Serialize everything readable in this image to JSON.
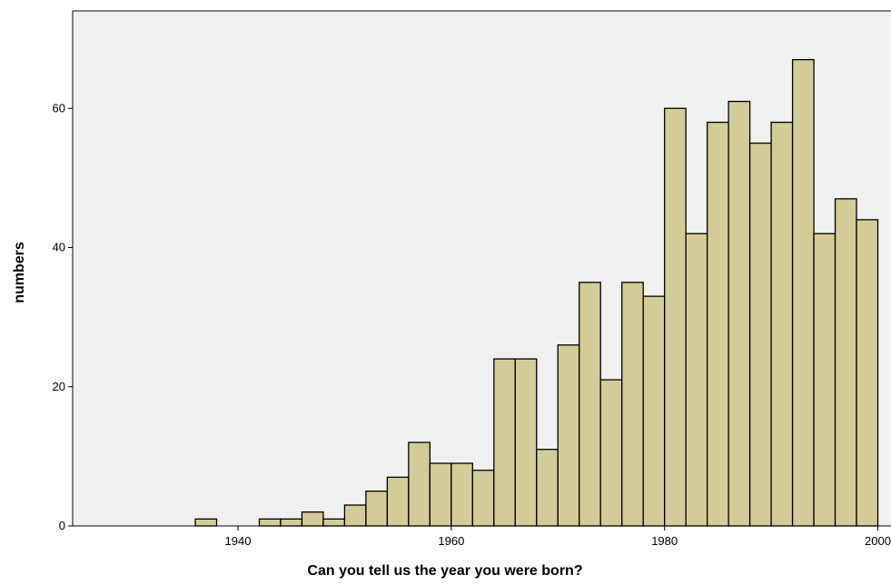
{
  "chart_data": {
    "type": "bar",
    "subtype": "histogram",
    "title": "",
    "xlabel": "Can you tell us the year you were born?",
    "ylabel": "numbers",
    "xlim": [
      1924.5,
      2002
    ],
    "ylim": [
      0,
      74
    ],
    "bin_width": 2,
    "xticks": [
      1940,
      1960,
      1980,
      2000
    ],
    "yticks": [
      0,
      20,
      40,
      60
    ],
    "grid": false,
    "legend": "none",
    "bins": [
      {
        "x0": 1936,
        "x1": 1938,
        "count": 1
      },
      {
        "x0": 1938,
        "x1": 1940,
        "count": 0
      },
      {
        "x0": 1940,
        "x1": 1942,
        "count": 0
      },
      {
        "x0": 1942,
        "x1": 1944,
        "count": 1
      },
      {
        "x0": 1944,
        "x1": 1946,
        "count": 1
      },
      {
        "x0": 1946,
        "x1": 1948,
        "count": 2
      },
      {
        "x0": 1948,
        "x1": 1950,
        "count": 1
      },
      {
        "x0": 1950,
        "x1": 1952,
        "count": 3
      },
      {
        "x0": 1952,
        "x1": 1954,
        "count": 5
      },
      {
        "x0": 1954,
        "x1": 1956,
        "count": 7
      },
      {
        "x0": 1956,
        "x1": 1958,
        "count": 12
      },
      {
        "x0": 1958,
        "x1": 1960,
        "count": 9
      },
      {
        "x0": 1960,
        "x1": 1962,
        "count": 9
      },
      {
        "x0": 1962,
        "x1": 1964,
        "count": 8
      },
      {
        "x0": 1964,
        "x1": 1966,
        "count": 24
      },
      {
        "x0": 1966,
        "x1": 1968,
        "count": 24
      },
      {
        "x0": 1968,
        "x1": 1970,
        "count": 11
      },
      {
        "x0": 1970,
        "x1": 1972,
        "count": 26
      },
      {
        "x0": 1972,
        "x1": 1974,
        "count": 35
      },
      {
        "x0": 1974,
        "x1": 1976,
        "count": 21
      },
      {
        "x0": 1976,
        "x1": 1978,
        "count": 35
      },
      {
        "x0": 1978,
        "x1": 1980,
        "count": 33
      },
      {
        "x0": 1980,
        "x1": 1982,
        "count": 60
      },
      {
        "x0": 1982,
        "x1": 1984,
        "count": 42
      },
      {
        "x0": 1984,
        "x1": 1986,
        "count": 58
      },
      {
        "x0": 1986,
        "x1": 1988,
        "count": 61
      },
      {
        "x0": 1988,
        "x1": 1990,
        "count": 55
      },
      {
        "x0": 1990,
        "x1": 1992,
        "count": 58
      },
      {
        "x0": 1992,
        "x1": 1994,
        "count": 67
      },
      {
        "x0": 1994,
        "x1": 1996,
        "count": 42
      },
      {
        "x0": 1996,
        "x1": 1998,
        "count": 47
      },
      {
        "x0": 1998,
        "x1": 2000,
        "count": 44
      }
    ],
    "colors": {
      "bar_fill": "#d3cc98",
      "bar_stroke": "#000000",
      "plot_background": "#f0f0f0",
      "page_background": "#ffffff"
    }
  }
}
